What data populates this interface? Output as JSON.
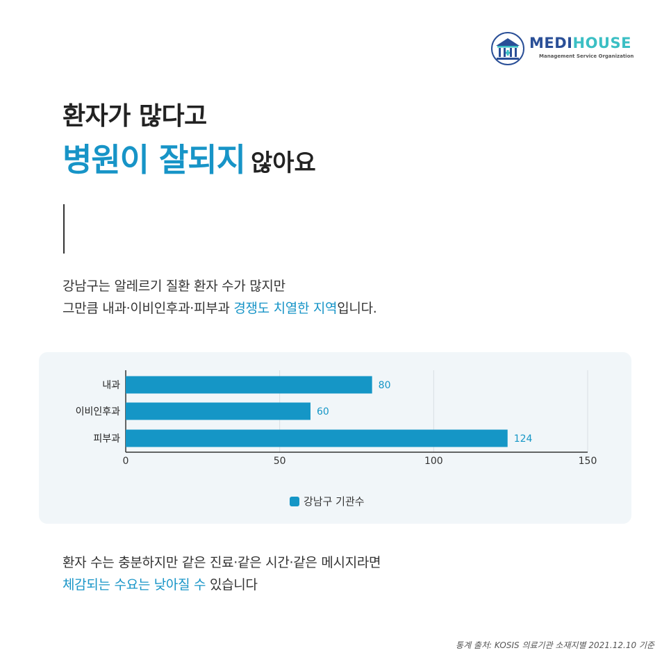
{
  "brand": {
    "name_a": "MEDI",
    "name_b": "HOUSE",
    "tagline": "Management Service Organization",
    "colors": {
      "primary": "#2a4f97",
      "secondary": "#3bbfc4"
    }
  },
  "title": {
    "line1": "환자가 많다고",
    "line2_accent": "병원이 잘되지",
    "line2_rest": "않아요"
  },
  "intro": {
    "line1": "강남구는 알레르기 질환 환자 수가 많지만",
    "line2_pre": "그만큼 내과·이비인후과·피부과 ",
    "line2_highlight": "경쟁도 치열한 지역",
    "line2_post": "입니다."
  },
  "chart_data": {
    "type": "bar",
    "orientation": "horizontal",
    "categories": [
      "내과",
      "이비인후과",
      "피부과"
    ],
    "series": [
      {
        "name": "강남구 기관수",
        "values": [
          80,
          60,
          124
        ],
        "color": "#1596c6"
      }
    ],
    "xlim": [
      0,
      150
    ],
    "xticks": [
      0,
      50,
      100,
      150
    ],
    "grid": true,
    "legend_position": "bottom-center",
    "data_labels": true
  },
  "outro": {
    "line1": "환자 수는 충분하지만 같은 진료·같은 시간·같은 메시지라면",
    "line2_highlight": "체감되는 수요는 낮아질 수",
    "line2_post": " 있습니다"
  },
  "source": "통계 출처: KOSIS 의료기관 소재지별 2021.12.10 기준",
  "colors": {
    "accent": "#1794c7",
    "bar": "#1596c6",
    "panel_bg": "#f1f6f9"
  }
}
